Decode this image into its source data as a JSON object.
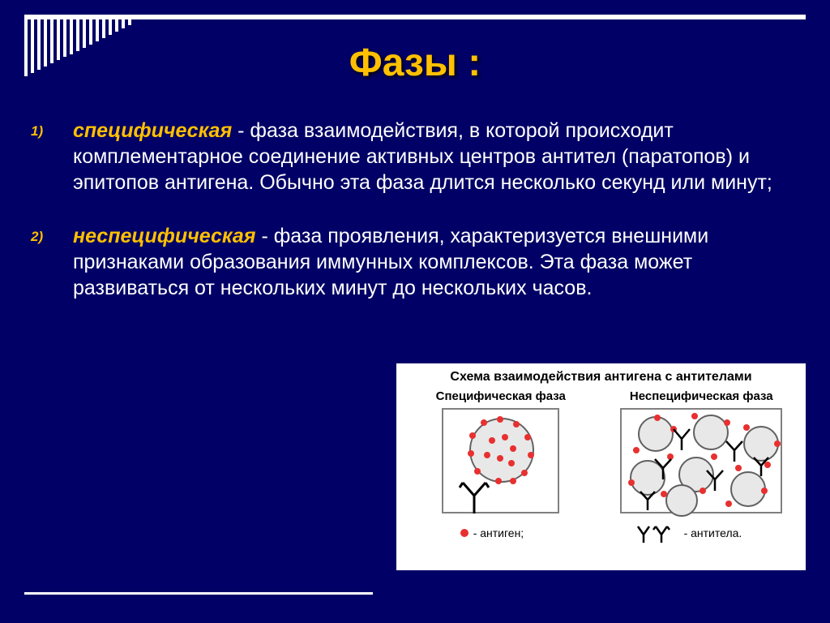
{
  "title": "Фазы :",
  "items": [
    {
      "lead": "специфическая",
      "text": " - фаза взаимодействия, в которой происходит комплементарное соединение активных центров антител (паратопов) и эпитопов антигена. Обычно эта фаза длится несколько секунд или минут;"
    },
    {
      "lead": "неспецифическая",
      "text": " - фаза проявления, характеризуется внешними признаками образования иммунных комплексов. Эта фаза может развиваться от нескольких минут до нескольких часов."
    }
  ],
  "diagram": {
    "title": "Схема взаимодействия антигена с антителами",
    "col1": "Специфическая фаза",
    "col2": "Неспецифическая фаза",
    "legend_antigen": "- антиген;",
    "legend_antibody": "- антитела.",
    "colors": {
      "cell_fill": "#e8e8e8",
      "cell_border": "#606060",
      "dot": "#e83030",
      "panel_border": "#808080",
      "bg": "#ffffff"
    }
  },
  "styling": {
    "background": "#000066",
    "accent": "#ffc000",
    "text": "#ffffff",
    "title_fontsize": 48,
    "body_fontsize": 25,
    "stripe_count": 17
  }
}
